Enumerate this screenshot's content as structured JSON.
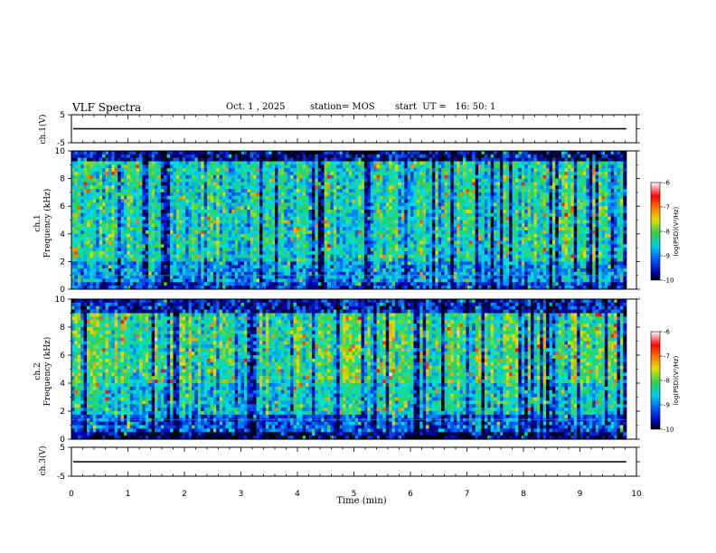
{
  "chart_data": {
    "type": "heatmap",
    "title": "VLF Spectra",
    "date": "Oct. 1 , 2025",
    "station": "station= MOS",
    "start": "start  UT =   16: 50: 1",
    "xlabel": "Time  (min)",
    "xlim": [
      0,
      10
    ],
    "xticks": [
      "0",
      "1",
      "2",
      "3",
      "4",
      "5",
      "6",
      "7",
      "8",
      "9",
      "10"
    ],
    "data_end_min": 9.82,
    "panels": [
      {
        "id": "ch1-wave",
        "kind": "waveform",
        "ylabel": "ch.1(V)",
        "ylim": [
          -5,
          5
        ],
        "yticks": [
          "5",
          "-5"
        ],
        "trace_level": 0
      },
      {
        "id": "ch1-spec",
        "kind": "spectrogram",
        "ylabel_line1": "ch.1",
        "ylabel_line2": "Frequency (kHz)",
        "ylim": [
          0,
          10
        ],
        "yticks": [
          "0",
          "2",
          "4",
          "6",
          "8",
          "10"
        ]
      },
      {
        "id": "ch2-spec",
        "kind": "spectrogram",
        "ylabel_line1": "ch.2",
        "ylabel_line2": "Frequency (kHz)",
        "ylim": [
          0,
          10
        ],
        "yticks": [
          "0",
          "2",
          "4",
          "6",
          "8",
          "10"
        ]
      },
      {
        "id": "ch3-wave",
        "kind": "waveform",
        "ylabel": "ch.3(V)",
        "ylim": [
          -5,
          5
        ],
        "yticks": [
          "5",
          "-5"
        ],
        "trace_level": 0
      }
    ],
    "colorbar": {
      "label": "log(PSD)(V²/Hz)",
      "range": [
        -10,
        -6
      ],
      "ticks": [
        "-6",
        "-7",
        "-8",
        "-9",
        "-10"
      ],
      "colors": [
        "#000000",
        "#0000b4",
        "#0070ff",
        "#00e0e0",
        "#30d050",
        "#e0e000",
        "#ff8000",
        "#ff0000",
        "#ffffff"
      ]
    }
  }
}
